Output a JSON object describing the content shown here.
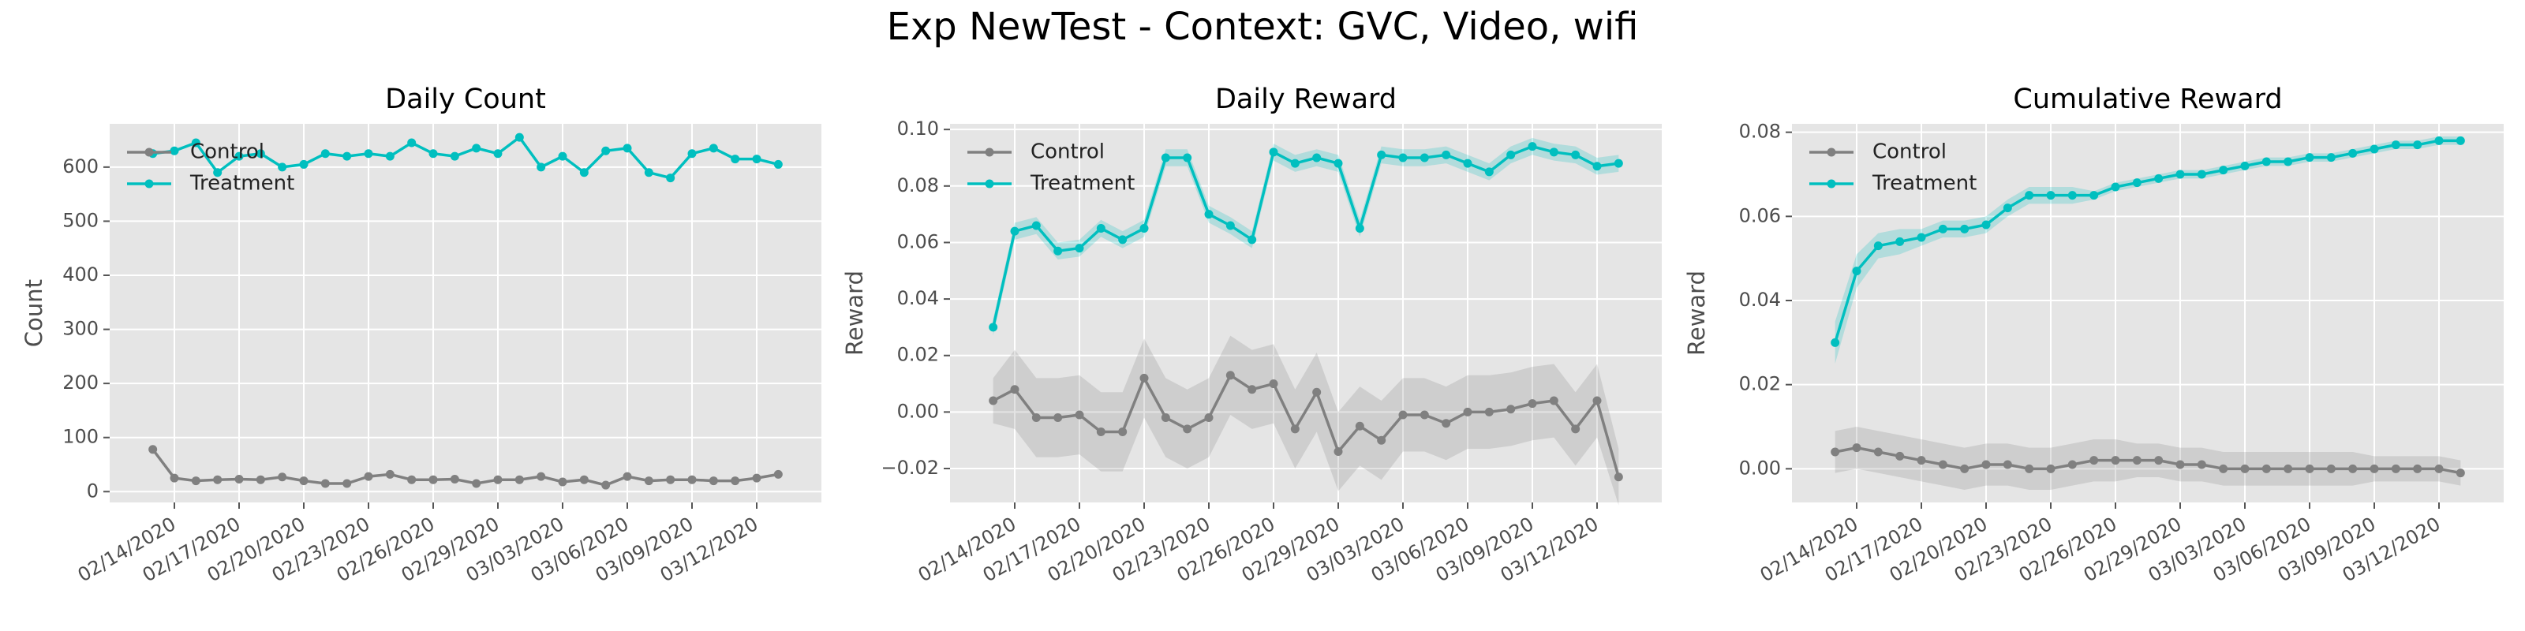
{
  "title": "Exp NewTest - Context: GVC, Video, wifi",
  "chart_data": [
    {
      "type": "line",
      "title": "Daily Count",
      "ylabel": "Count",
      "grid": true,
      "legend": "upper left",
      "x": [
        "02/13/2020",
        "02/14/2020",
        "02/15/2020",
        "02/16/2020",
        "02/17/2020",
        "02/18/2020",
        "02/19/2020",
        "02/20/2020",
        "02/21/2020",
        "02/22/2020",
        "02/23/2020",
        "02/24/2020",
        "02/25/2020",
        "02/26/2020",
        "02/27/2020",
        "02/28/2020",
        "02/29/2020",
        "03/01/2020",
        "03/02/2020",
        "03/03/2020",
        "03/04/2020",
        "03/05/2020",
        "03/06/2020",
        "03/07/2020",
        "03/08/2020",
        "03/09/2020",
        "03/10/2020",
        "03/11/2020",
        "03/12/2020",
        "03/13/2020"
      ],
      "xlim": [
        "02/11/2020",
        "03/15/2020"
      ],
      "xticks": [
        "02/14/2020",
        "02/17/2020",
        "02/20/2020",
        "02/23/2020",
        "02/26/2020",
        "02/29/2020",
        "03/03/2020",
        "03/06/2020",
        "03/09/2020",
        "03/12/2020"
      ],
      "ylim": [
        -20,
        680
      ],
      "yticks": [
        0,
        100,
        200,
        300,
        400,
        500,
        600
      ],
      "series": [
        {
          "name": "Control",
          "color": "#808080",
          "values": [
            78,
            25,
            20,
            22,
            23,
            22,
            27,
            20,
            15,
            15,
            28,
            32,
            22,
            22,
            23,
            15,
            22,
            22,
            28,
            18,
            22,
            12,
            28,
            20,
            22,
            22,
            20,
            20,
            25,
            32
          ]
        },
        {
          "name": "Treatment",
          "color": "#00bfbf",
          "values": [
            625,
            630,
            645,
            590,
            620,
            625,
            600,
            605,
            625,
            620,
            625,
            620,
            645,
            625,
            620,
            635,
            625,
            655,
            600,
            620,
            590,
            630,
            635,
            590,
            580,
            625,
            635,
            615,
            615,
            605
          ]
        }
      ]
    },
    {
      "type": "line",
      "title": "Daily Reward",
      "ylabel": "Reward",
      "grid": true,
      "legend": "upper left",
      "x": [
        "02/13/2020",
        "02/14/2020",
        "02/15/2020",
        "02/16/2020",
        "02/17/2020",
        "02/18/2020",
        "02/19/2020",
        "02/20/2020",
        "02/21/2020",
        "02/22/2020",
        "02/23/2020",
        "02/24/2020",
        "02/25/2020",
        "02/26/2020",
        "02/27/2020",
        "02/28/2020",
        "02/29/2020",
        "03/01/2020",
        "03/02/2020",
        "03/03/2020",
        "03/04/2020",
        "03/05/2020",
        "03/06/2020",
        "03/07/2020",
        "03/08/2020",
        "03/09/2020",
        "03/10/2020",
        "03/11/2020",
        "03/12/2020",
        "03/13/2020"
      ],
      "xlim": [
        "02/11/2020",
        "03/15/2020"
      ],
      "xticks": [
        "02/14/2020",
        "02/17/2020",
        "02/20/2020",
        "02/23/2020",
        "02/26/2020",
        "02/29/2020",
        "03/03/2020",
        "03/06/2020",
        "03/09/2020",
        "03/12/2020"
      ],
      "ylim": [
        -0.032,
        0.102
      ],
      "yticks": [
        {
          "value": -0.02,
          "label": "−0.02"
        },
        {
          "value": 0,
          "label": "0.00"
        },
        {
          "value": 0.02,
          "label": "0.02"
        },
        {
          "value": 0.04,
          "label": "0.04"
        },
        {
          "value": 0.06,
          "label": "0.06"
        },
        {
          "value": 0.08,
          "label": "0.08"
        },
        {
          "value": 0.1,
          "label": "0.10"
        }
      ],
      "series": [
        {
          "name": "Control",
          "color": "#808080",
          "values": [
            0.004,
            0.008,
            -0.002,
            -0.002,
            -0.001,
            -0.007,
            -0.007,
            0.012,
            -0.002,
            -0.006,
            -0.002,
            0.013,
            0.008,
            0.01,
            -0.006,
            0.007,
            -0.014,
            -0.005,
            -0.01,
            -0.001,
            -0.001,
            -0.004,
            0.0,
            0.0,
            0.001,
            0.003,
            0.004,
            -0.006,
            0.004,
            -0.023
          ],
          "ci": [
            0.008,
            0.014,
            0.014,
            0.014,
            0.014,
            0.014,
            0.014,
            0.014,
            0.014,
            0.014,
            0.014,
            0.014,
            0.014,
            0.014,
            0.014,
            0.014,
            0.014,
            0.014,
            0.014,
            0.013,
            0.013,
            0.013,
            0.013,
            0.013,
            0.013,
            0.013,
            0.013,
            0.013,
            0.013,
            0.01
          ]
        },
        {
          "name": "Treatment",
          "color": "#00bfbf",
          "values": [
            0.03,
            0.064,
            0.066,
            0.057,
            0.058,
            0.065,
            0.061,
            0.065,
            0.09,
            0.09,
            0.07,
            0.066,
            0.061,
            0.092,
            0.088,
            0.09,
            0.088,
            0.065,
            0.091,
            0.09,
            0.09,
            0.091,
            0.088,
            0.085,
            0.091,
            0.094,
            0.092,
            0.091,
            0.087,
            0.088
          ],
          "ci": [
            0.003,
            0.003,
            0.003,
            0.003,
            0.003,
            0.003,
            0.003,
            0.003,
            0.003,
            0.003,
            0.003,
            0.003,
            0.003,
            0.003,
            0.003,
            0.003,
            0.003,
            0.003,
            0.003,
            0.003,
            0.003,
            0.003,
            0.003,
            0.003,
            0.003,
            0.003,
            0.003,
            0.003,
            0.003,
            0.003
          ]
        }
      ]
    },
    {
      "type": "line",
      "title": "Cumulative Reward",
      "ylabel": "Reward",
      "grid": true,
      "legend": "upper left",
      "x": [
        "02/13/2020",
        "02/14/2020",
        "02/15/2020",
        "02/16/2020",
        "02/17/2020",
        "02/18/2020",
        "02/19/2020",
        "02/20/2020",
        "02/21/2020",
        "02/22/2020",
        "02/23/2020",
        "02/24/2020",
        "02/25/2020",
        "02/26/2020",
        "02/27/2020",
        "02/28/2020",
        "02/29/2020",
        "03/01/2020",
        "03/02/2020",
        "03/03/2020",
        "03/04/2020",
        "03/05/2020",
        "03/06/2020",
        "03/07/2020",
        "03/08/2020",
        "03/09/2020",
        "03/10/2020",
        "03/11/2020",
        "03/12/2020",
        "03/13/2020"
      ],
      "xlim": [
        "02/11/2020",
        "03/15/2020"
      ],
      "xticks": [
        "02/14/2020",
        "02/17/2020",
        "02/20/2020",
        "02/23/2020",
        "02/26/2020",
        "02/29/2020",
        "03/03/2020",
        "03/06/2020",
        "03/09/2020",
        "03/12/2020"
      ],
      "ylim": [
        -0.008,
        0.082
      ],
      "yticks": [
        {
          "value": 0,
          "label": "0.00"
        },
        {
          "value": 0.02,
          "label": "0.02"
        },
        {
          "value": 0.04,
          "label": "0.04"
        },
        {
          "value": 0.06,
          "label": "0.06"
        },
        {
          "value": 0.08,
          "label": "0.08"
        }
      ],
      "series": [
        {
          "name": "Control",
          "color": "#808080",
          "values": [
            0.004,
            0.005,
            0.004,
            0.003,
            0.002,
            0.001,
            0.0,
            0.001,
            0.001,
            0.0,
            0.0,
            0.001,
            0.002,
            0.002,
            0.002,
            0.002,
            0.001,
            0.001,
            0.0,
            0.0,
            0.0,
            0.0,
            0.0,
            0.0,
            0.0,
            0.0,
            0.0,
            0.0,
            0.0,
            -0.001
          ],
          "ci": [
            0.005,
            0.005,
            0.005,
            0.005,
            0.005,
            0.005,
            0.005,
            0.005,
            0.005,
            0.005,
            0.005,
            0.005,
            0.005,
            0.005,
            0.004,
            0.004,
            0.004,
            0.004,
            0.004,
            0.004,
            0.004,
            0.004,
            0.004,
            0.004,
            0.004,
            0.003,
            0.003,
            0.003,
            0.003,
            0.003
          ]
        },
        {
          "name": "Treatment",
          "color": "#00bfbf",
          "values": [
            0.03,
            0.047,
            0.053,
            0.054,
            0.055,
            0.057,
            0.057,
            0.058,
            0.062,
            0.065,
            0.065,
            0.065,
            0.065,
            0.067,
            0.068,
            0.069,
            0.07,
            0.07,
            0.071,
            0.072,
            0.073,
            0.073,
            0.074,
            0.074,
            0.075,
            0.076,
            0.077,
            0.077,
            0.078,
            0.078
          ],
          "ci": [
            0.005,
            0.004,
            0.003,
            0.003,
            0.002,
            0.002,
            0.002,
            0.002,
            0.002,
            0.002,
            0.002,
            0.002,
            0.001,
            0.001,
            0.001,
            0.001,
            0.001,
            0.001,
            0.001,
            0.001,
            0.001,
            0.001,
            0.001,
            0.001,
            0.001,
            0.001,
            0.001,
            0.001,
            0.001,
            0.001
          ]
        }
      ]
    }
  ]
}
